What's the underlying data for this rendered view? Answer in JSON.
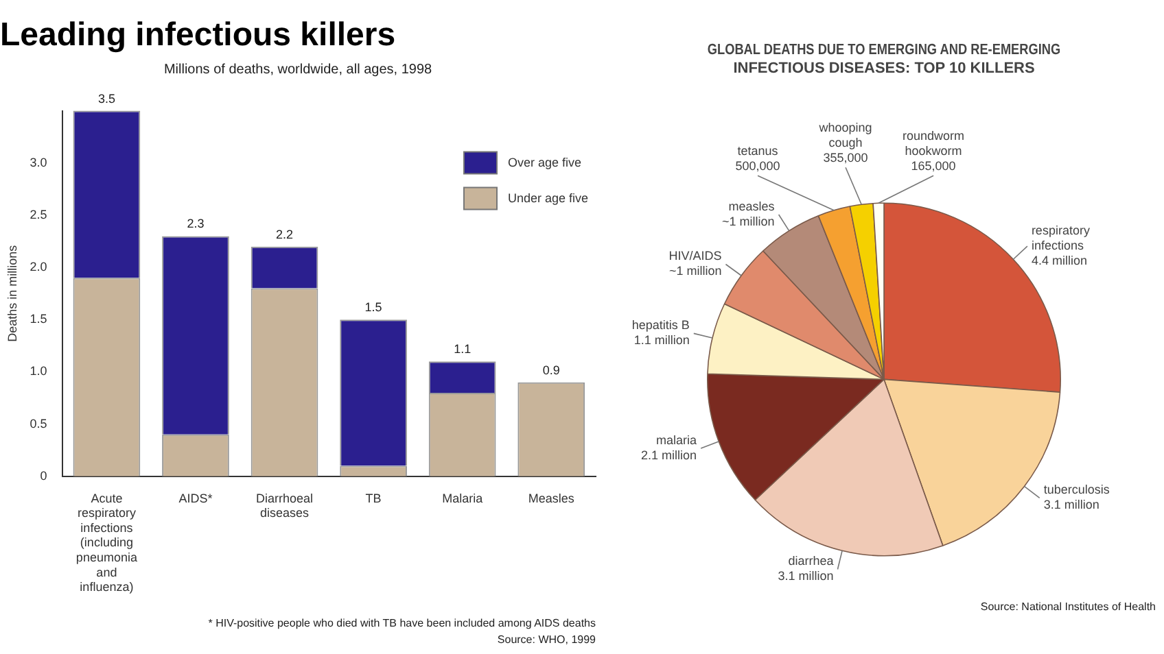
{
  "chart_data": [
    {
      "type": "bar",
      "title": "Leading infectious killers",
      "subtitle": "Millions of deaths, worldwide, all ages, 1998",
      "ylabel": "Deaths in millions",
      "categories": [
        "Acute respiratory infections (including pneumonia and influenza)",
        "AIDS*",
        "Diarrhoeal diseases",
        "TB",
        "Malaria",
        "Measles"
      ],
      "stacked": true,
      "series": [
        {
          "name": "Under age five",
          "color": "#c8b49a",
          "values": [
            1.9,
            0.4,
            1.8,
            0.1,
            0.8,
            0.9
          ]
        },
        {
          "name": "Over age five",
          "color": "#2b1f8f",
          "values": [
            1.6,
            1.9,
            0.4,
            1.4,
            0.3,
            0
          ]
        }
      ],
      "totals": [
        "3.5",
        "2.3",
        "2.2",
        "1.5",
        "1.1",
        "0.9"
      ],
      "ylim": [
        0,
        3.5
      ],
      "yticks": [
        0,
        0.5,
        {
          "value": 1,
          "label": "1.0"
        },
        1.5,
        {
          "value": 2,
          "label": "2.0"
        },
        2.5,
        {
          "value": 3,
          "label": "3.0"
        }
      ],
      "grid": false,
      "legend": "top right",
      "annotations": [
        "* HIV-positive people who died with TB have been included among AIDS deaths",
        "Source: WHO, 1999"
      ]
    },
    {
      "type": "pie",
      "title": "GLOBAL DEATHS DUE TO EMERGING AND RE-EMERGING INFECTIOUS DISEASES: TOP 10 KILLERS",
      "categories": [
        "respiratory infections",
        "tuberculosis",
        "diarrhea",
        "malaria",
        "hepatitis B",
        "HIV/AIDS",
        "measles",
        "tetanus",
        "whooping cough",
        "roundworm hookworm"
      ],
      "values": [
        4400000,
        3100000,
        3100000,
        2100000,
        1100000,
        1000000,
        1000000,
        500000,
        355000,
        165000
      ],
      "value_labels": [
        "4.4 million",
        "3.1 million",
        "3.1 million",
        "2.1 million",
        "1.1 million",
        "~1 million",
        "~1 million",
        "500,000",
        "355,000",
        "165,000"
      ],
      "colors": [
        "#d4553a",
        "#f9d39a",
        "#f0cab6",
        "#7a2a20",
        "#fdf1c4",
        "#e08a6c",
        "#b48a78",
        "#f5a030",
        "#f5d000",
        "#fffff4"
      ],
      "legend": false,
      "annotations": [
        "Source: National Institutes of Health"
      ]
    }
  ]
}
